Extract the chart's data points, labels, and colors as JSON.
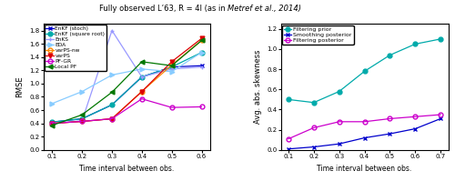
{
  "title_normal": "Fully observed L’63, R = 4I (as in ",
  "title_italic": "Metref et al.",
  "title_end": ", 2014)",
  "left": {
    "xlabel": "Time interval between obs.",
    "ylabel": "RMSE",
    "xlim": [
      0.07,
      0.63
    ],
    "ylim": [
      0,
      1.9
    ],
    "yticks": [
      0,
      0.2,
      0.4,
      0.6,
      0.8,
      1.0,
      1.2,
      1.4,
      1.6,
      1.8
    ],
    "xticks": [
      0.1,
      0.2,
      0.3,
      0.4,
      0.5,
      0.6
    ],
    "series": [
      {
        "key": "EnKF_stoch",
        "x": [
          0.1,
          0.2,
          0.3,
          0.4,
          0.5,
          0.6
        ],
        "y": [
          0.42,
          0.47,
          0.68,
          1.1,
          1.25,
          1.27
        ],
        "color": "#0000cc",
        "marker": "x",
        "mfc": null,
        "linestyle": "-",
        "label": "EnKF (stoch)"
      },
      {
        "key": "EnKF_sqroot",
        "x": [
          0.1,
          0.2,
          0.3,
          0.4,
          0.5,
          0.6
        ],
        "y": [
          0.42,
          0.47,
          0.68,
          1.1,
          1.25,
          1.47
        ],
        "color": "#00aaaa",
        "marker": "o",
        "mfc": null,
        "linestyle": "-",
        "label": "EnKF (square root)"
      },
      {
        "key": "EnKS",
        "x": [
          0.1,
          0.2,
          0.3,
          0.4,
          0.5,
          0.6
        ],
        "y": [
          0.4,
          0.44,
          1.8,
          1.1,
          1.22,
          1.25
        ],
        "color": "#9999ff",
        "marker": "+",
        "mfc": null,
        "linestyle": "-",
        "label": "EnKS"
      },
      {
        "key": "EDA",
        "x": [
          0.1,
          0.2,
          0.3,
          0.4,
          0.5,
          0.6
        ],
        "y": [
          0.7,
          0.88,
          1.13,
          1.22,
          1.18,
          1.47
        ],
        "color": "#88ccff",
        "marker": ">",
        "mfc": null,
        "linestyle": "-",
        "label": "EDA"
      },
      {
        "key": "varPS_nw",
        "x": [
          0.1,
          0.2,
          0.3,
          0.4,
          0.5,
          0.6
        ],
        "y": [
          0.4,
          0.43,
          0.47,
          0.88,
          1.28,
          1.65
        ],
        "color": "#ff8800",
        "marker": "o",
        "mfc": "none",
        "linestyle": "-",
        "label": "varPS-nw"
      },
      {
        "key": "varPS",
        "x": [
          0.1,
          0.2,
          0.3,
          0.4,
          0.5,
          0.6
        ],
        "y": [
          0.4,
          0.43,
          0.47,
          0.88,
          1.33,
          1.68
        ],
        "color": "#dd0000",
        "marker": "v",
        "mfc": null,
        "linestyle": "-",
        "label": "varPS"
      },
      {
        "key": "PF_GR",
        "x": [
          0.1,
          0.2,
          0.3,
          0.4,
          0.5,
          0.6
        ],
        "y": [
          0.4,
          0.43,
          0.47,
          0.77,
          0.64,
          0.65
        ],
        "color": "#cc00cc",
        "marker": "o",
        "mfc": "none",
        "linestyle": "-",
        "label": "PF-GR"
      },
      {
        "key": "LocalPF",
        "x": [
          0.1,
          0.2,
          0.3,
          0.4,
          0.5,
          0.6
        ],
        "y": [
          0.37,
          0.53,
          0.87,
          1.33,
          1.27,
          1.65
        ],
        "color": "#007700",
        "marker": "<",
        "mfc": null,
        "linestyle": "-",
        "label": "Local PF"
      }
    ]
  },
  "right": {
    "xlabel": "Time interval between obs.",
    "ylabel": "Avg. abs. skewness",
    "xlim": [
      0.07,
      0.73
    ],
    "ylim": [
      0,
      1.25
    ],
    "yticks": [
      0,
      0.2,
      0.4,
      0.6,
      0.8,
      1.0,
      1.2
    ],
    "xticks": [
      0.1,
      0.2,
      0.3,
      0.4,
      0.5,
      0.6,
      0.7
    ],
    "series": [
      {
        "key": "filtering_prior",
        "x": [
          0.1,
          0.2,
          0.3,
          0.4,
          0.5,
          0.6,
          0.7
        ],
        "y": [
          0.5,
          0.47,
          0.58,
          0.78,
          0.94,
          1.05,
          1.1
        ],
        "color": "#00aaaa",
        "marker": "o",
        "mfc": null,
        "linestyle": "-",
        "label": "Filtering prior"
      },
      {
        "key": "smoothing_posterior",
        "x": [
          0.1,
          0.2,
          0.3,
          0.4,
          0.5,
          0.6,
          0.7
        ],
        "y": [
          0.01,
          0.03,
          0.06,
          0.12,
          0.16,
          0.21,
          0.31
        ],
        "color": "#0000cc",
        "marker": "x",
        "mfc": null,
        "linestyle": "-",
        "label": "Smoothing posterior"
      },
      {
        "key": "filtering_posterior",
        "x": [
          0.1,
          0.2,
          0.3,
          0.4,
          0.5,
          0.6,
          0.7
        ],
        "y": [
          0.11,
          0.22,
          0.28,
          0.28,
          0.31,
          0.33,
          0.35
        ],
        "color": "#cc00cc",
        "marker": "o",
        "mfc": "none",
        "linestyle": "-",
        "label": "Filtering posterior"
      }
    ]
  }
}
